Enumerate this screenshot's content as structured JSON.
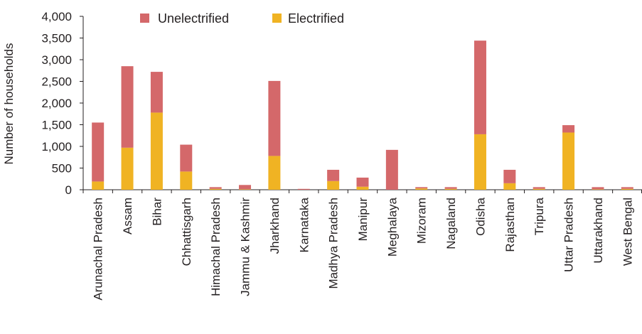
{
  "chart_data": {
    "type": "bar",
    "stacked": true,
    "ylabel": "Number of households",
    "xlabel": "",
    "ylim": [
      0,
      4000
    ],
    "yticks": [
      0,
      500,
      1000,
      1500,
      2000,
      2500,
      3000,
      3500,
      4000
    ],
    "ytick_labels": [
      "0",
      "500",
      "1,000",
      "1,500",
      "2,000",
      "2,500",
      "3,000",
      "3,500",
      "4,000"
    ],
    "legend_position": "top",
    "grid": false,
    "categories": [
      "Arunachal Pradesh",
      "Assam",
      "Bihar",
      "Chhattisgarh",
      "Himachal Pradesh",
      "Jammu & Kashmir",
      "Jharkhand",
      "Karnataka",
      "Madhya Pradesh",
      "Manipur",
      "Meghalaya",
      "Mizoram",
      "Nagaland",
      "Odisha",
      "Rajasthan",
      "Tripura",
      "Uttar Pradesh",
      "Uttarakhand",
      "West Bengal"
    ],
    "series": [
      {
        "name": "Electrified",
        "color": "#f0b323",
        "values": [
          190,
          970,
          1780,
          420,
          20,
          10,
          780,
          0,
          200,
          70,
          0,
          30,
          20,
          1280,
          150,
          20,
          1320,
          10,
          20
        ]
      },
      {
        "name": "Unelectrified",
        "color": "#d4686a",
        "values": [
          1360,
          1880,
          940,
          620,
          40,
          100,
          1730,
          20,
          260,
          210,
          920,
          30,
          40,
          2160,
          310,
          40,
          170,
          50,
          40
        ]
      }
    ],
    "legend_order": [
      "Unelectrified",
      "Electrified"
    ]
  }
}
